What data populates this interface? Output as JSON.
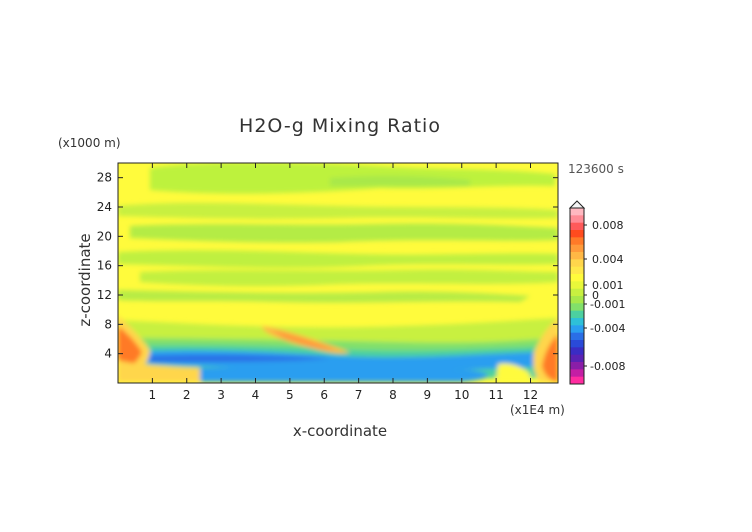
{
  "chart_data": {
    "type": "heatmap",
    "title": "H2O-g Mixing Ratio",
    "xlabel": "x-coordinate",
    "ylabel": "z-coordinate",
    "x_unit_label": "(x1E4 m)",
    "y_unit_label": "(x1000 m)",
    "time_label": "123600 s",
    "xlim": [
      0,
      12.8
    ],
    "ylim": [
      0,
      30
    ],
    "x_ticks": [
      "1",
      "2",
      "3",
      "4",
      "5",
      "6",
      "7",
      "8",
      "9",
      "10",
      "11",
      "12"
    ],
    "y_ticks": [
      "4",
      "8",
      "12",
      "16",
      "20",
      "24",
      "28"
    ],
    "colorbar": {
      "labels": [
        "0.008",
        "0.004",
        "0.001",
        "0",
        "-0.001",
        "-0.004",
        "-0.008"
      ],
      "colors": [
        "#ffb8c0",
        "#ff8c96",
        "#ff5a5a",
        "#ff4b1e",
        "#ff7a28",
        "#ff9a3a",
        "#ffb845",
        "#ffd64c",
        "#ffe84a",
        "#fffb3c",
        "#e8f83a",
        "#c8f040",
        "#a8e84a",
        "#82e06a",
        "#4cd0a0",
        "#2ec0d8",
        "#2a9ef0",
        "#2a6ee6",
        "#2a4ad8",
        "#3a2cc4",
        "#5a22b4",
        "#8a1ea8",
        "#c41ea4",
        "#ff2ca0"
      ]
    },
    "grid": false,
    "description_regions": "mostly yellow (near 0) with green bands aloft; blue/cyan negative layer near 1-4 km; orange/red positive at lateral boundaries near surface"
  }
}
